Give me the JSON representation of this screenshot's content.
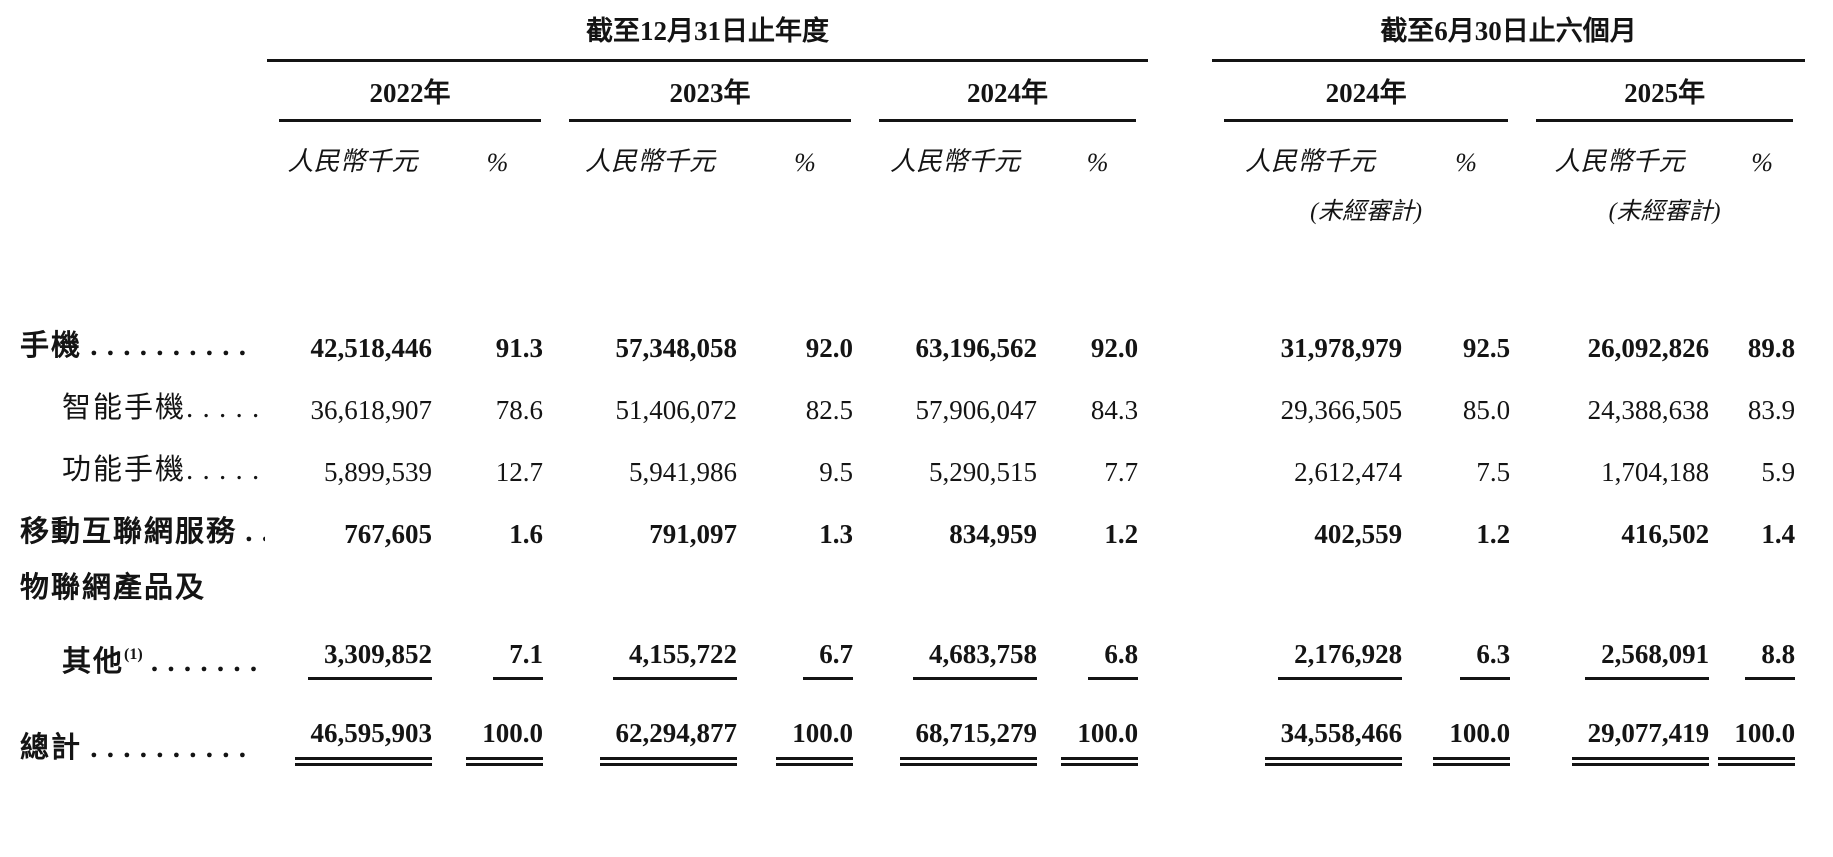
{
  "page": {
    "background_color": "#ffffff",
    "text_color": "#141414"
  },
  "table": {
    "col_money": "人民幣千元",
    "col_pct": "%",
    "groups": [
      {
        "title": "截至12月31日止年度",
        "years": [
          {
            "label": "2022年",
            "unaudited": ""
          },
          {
            "label": "2023年",
            "unaudited": ""
          },
          {
            "label": "2024年",
            "unaudited": ""
          }
        ]
      },
      {
        "title": "截至6月30日止六個月",
        "years": [
          {
            "label": "2024年",
            "unaudited": "(未經審計)"
          },
          {
            "label": "2025年",
            "unaudited": "(未經審計)"
          }
        ]
      }
    ],
    "rows": [
      {
        "label": "手機",
        "sup": "",
        "dots": " . . . . . . . . . .",
        "bold": true,
        "indent": false,
        "underline": "none",
        "values": [
          "42,518,446",
          "91.3",
          "57,348,058",
          "92.0",
          "63,196,562",
          "92.0",
          "31,978,979",
          "92.5",
          "26,092,826",
          "89.8"
        ]
      },
      {
        "label": "智能手機",
        "sup": "",
        "dots": ". . . . . .",
        "bold": false,
        "indent": true,
        "underline": "none",
        "values": [
          "36,618,907",
          "78.6",
          "51,406,072",
          "82.5",
          "57,906,047",
          "84.3",
          "29,366,505",
          "85.0",
          "24,388,638",
          "83.9"
        ]
      },
      {
        "label": "功能手機",
        "sup": "",
        "dots": ". . . . . .",
        "bold": false,
        "indent": true,
        "underline": "none",
        "values": [
          "5,899,539",
          "12.7",
          "5,941,986",
          "9.5",
          "5,290,515",
          "7.7",
          "2,612,474",
          "7.5",
          "1,704,188",
          "5.9"
        ]
      },
      {
        "label": "移動互聯網服務",
        "sup": "",
        "dots": " . .",
        "bold": true,
        "indent": false,
        "underline": "none",
        "values": [
          "767,605",
          "1.6",
          "791,097",
          "1.3",
          "834,959",
          "1.2",
          "402,559",
          "1.2",
          "416,502",
          "1.4"
        ]
      },
      {
        "label": "物聯網產品及",
        "sup": "",
        "dots": "",
        "bold": true,
        "indent": false,
        "underline": "none",
        "values": []
      },
      {
        "label": "其他",
        "sup": "(1)",
        "dots": " . . . . . . . .",
        "bold": true,
        "indent": true,
        "underline": "single",
        "values": [
          "3,309,852",
          "7.1",
          "4,155,722",
          "6.7",
          "4,683,758",
          "6.8",
          "2,176,928",
          "6.3",
          "2,568,091",
          "8.8"
        ]
      },
      {
        "label": "總計",
        "sup": "",
        "dots": " . . . . . . . . . .",
        "bold": true,
        "indent": false,
        "underline": "double",
        "values": [
          "46,595,903",
          "100.0",
          "62,294,877",
          "100.0",
          "68,715,279",
          "100.0",
          "34,558,466",
          "100.0",
          "29,077,419",
          "100.0"
        ]
      }
    ]
  }
}
